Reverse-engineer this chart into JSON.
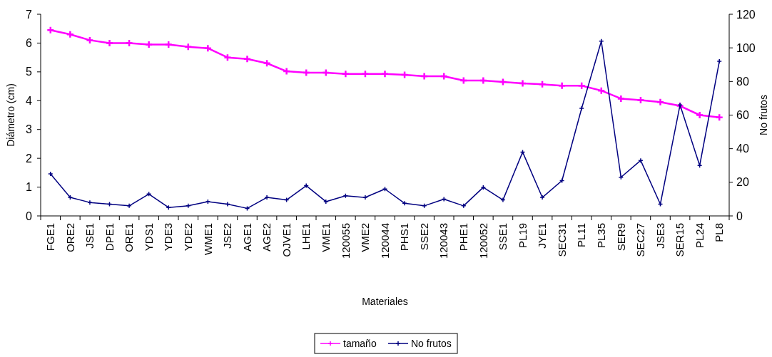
{
  "chart_data": {
    "type": "line",
    "xlabel": "Materiales",
    "ylabel": "Diámetro (cm)",
    "y2label": "No frutos",
    "categories": [
      "FGE1",
      "ORE2",
      "JSE1",
      "DPE1",
      "ORE1",
      "YDS1",
      "YDE3",
      "YDE2",
      "WME1",
      "JSE2",
      "AGE1",
      "AGE2",
      "OJVE1",
      "LHE1",
      "VME1",
      "120055",
      "VME2",
      "120044",
      "PHS1",
      "SSE2",
      "120043",
      "PHE1",
      "120052",
      "SSE1",
      "PL19",
      "JYE1",
      "SEC31",
      "PL11",
      "PL35",
      "SER9",
      "SEC27",
      "JSE3",
      "SER15",
      "PL24",
      "PL8"
    ],
    "series": [
      {
        "name": "tamaño",
        "color": "#ff00ff",
        "values": [
          6.45,
          6.3,
          6.1,
          6.0,
          6.0,
          5.95,
          5.95,
          5.87,
          5.82,
          5.5,
          5.45,
          5.3,
          5.02,
          4.97,
          4.97,
          4.93,
          4.93,
          4.93,
          4.9,
          4.85,
          4.85,
          4.7,
          4.7,
          4.65,
          4.6,
          4.57,
          4.52,
          4.52,
          4.35,
          4.07,
          4.02,
          3.95,
          3.82,
          3.5,
          3.42
        ]
      },
      {
        "name": "No frutos",
        "color": "#000080",
        "axis": "y2",
        "values": [
          25,
          11,
          8,
          7,
          6,
          13,
          5,
          6,
          8.5,
          7,
          4.5,
          11,
          9.5,
          18,
          8.5,
          12,
          11,
          16,
          7.5,
          6,
          10,
          6,
          17,
          9.5,
          38,
          11,
          21,
          64,
          104,
          23,
          33,
          7,
          66,
          30,
          92
        ]
      }
    ],
    "ylim": [
      0,
      7
    ],
    "yticks": [
      0,
      1,
      2,
      3,
      4,
      5,
      6,
      7
    ],
    "y2lim": [
      0,
      120
    ],
    "y2ticks": [
      0,
      20,
      40,
      60,
      80,
      100,
      120
    ],
    "grid": false,
    "legend": "bottom",
    "marker": "cross",
    "line_style": "solid"
  }
}
